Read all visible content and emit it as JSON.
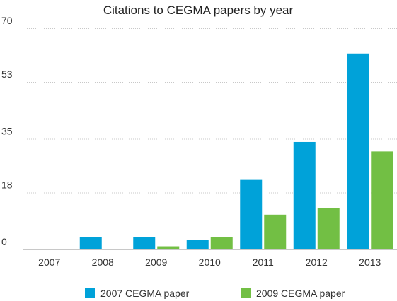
{
  "chart_data": {
    "type": "bar",
    "title": "Citations to CEGMA papers by year",
    "xlabel": "",
    "ylabel": "",
    "categories": [
      "2007",
      "2008",
      "2009",
      "2010",
      "2011",
      "2012",
      "2013"
    ],
    "series": [
      {
        "name": "2007 CEGMA paper",
        "color": "#00a2d9",
        "values": [
          0,
          4,
          4,
          3,
          22,
          34,
          62
        ]
      },
      {
        "name": "2009 CEGMA paper",
        "color": "#72bf44",
        "values": [
          0,
          0,
          1,
          4,
          11,
          13,
          31
        ]
      }
    ],
    "yticks": [
      0,
      18,
      35,
      53,
      70
    ],
    "ylim": [
      0,
      70
    ],
    "grid": true,
    "legend_position": "bottom"
  }
}
